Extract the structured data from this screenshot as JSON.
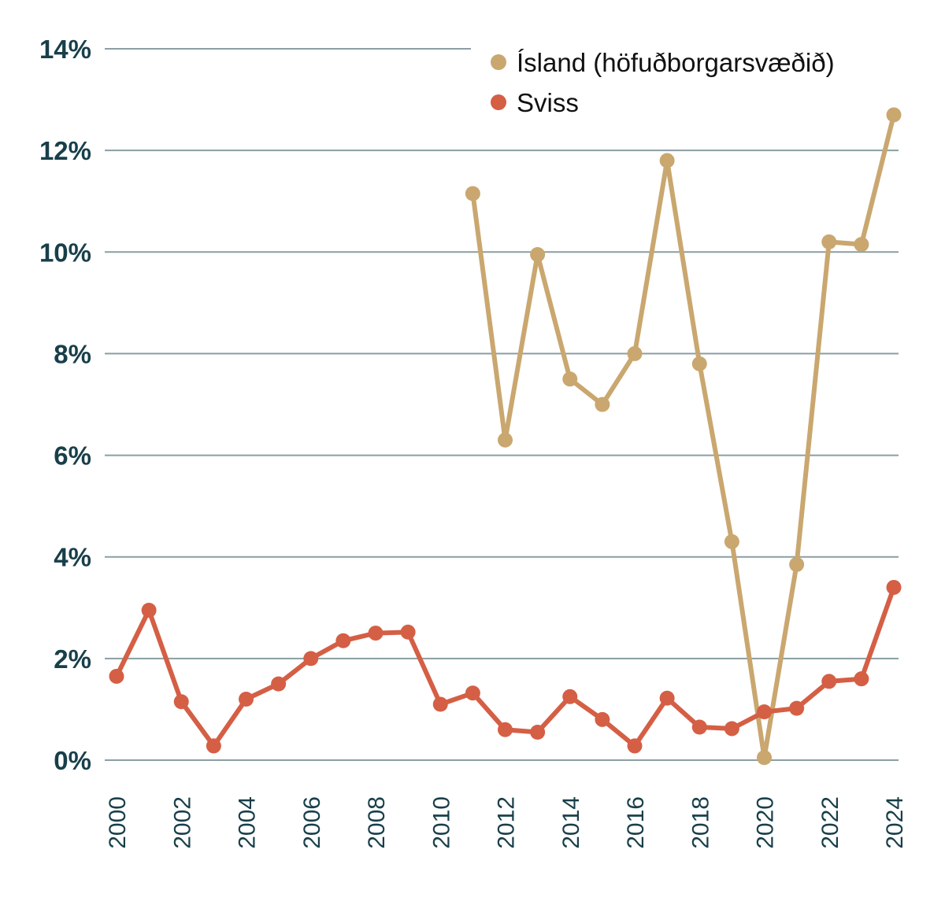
{
  "chart_data": {
    "type": "line",
    "title": "",
    "xlabel": "",
    "ylabel": "",
    "x": [
      2000,
      2001,
      2002,
      2003,
      2004,
      2005,
      2006,
      2007,
      2008,
      2009,
      2010,
      2011,
      2012,
      2013,
      2014,
      2015,
      2016,
      2017,
      2018,
      2019,
      2020,
      2021,
      2022,
      2023,
      2024
    ],
    "x_tick_labels": [
      "2000",
      "2002",
      "2004",
      "2006",
      "2008",
      "2010",
      "2012",
      "2014",
      "2016",
      "2018",
      "2020",
      "2022",
      "2024"
    ],
    "y_ticks": [
      0,
      2,
      4,
      6,
      8,
      10,
      12,
      14
    ],
    "y_tick_labels": [
      "0%",
      "2%",
      "4%",
      "6%",
      "8%",
      "10%",
      "12%",
      "14%"
    ],
    "ylim": [
      0,
      14
    ],
    "grid": true,
    "legend_position": "top-right",
    "series": [
      {
        "name": "Ísland (höfuðborgarsvæðið)",
        "color": "#c9a76f",
        "values": [
          null,
          null,
          null,
          null,
          null,
          null,
          null,
          null,
          null,
          null,
          null,
          11.15,
          6.3,
          9.95,
          7.5,
          7.0,
          8.0,
          11.8,
          7.8,
          4.3,
          0.05,
          3.85,
          10.2,
          10.15,
          12.7
        ]
      },
      {
        "name": "Sviss",
        "color": "#d45f45",
        "values": [
          1.65,
          2.95,
          1.15,
          0.28,
          1.2,
          1.5,
          2.0,
          2.35,
          2.5,
          2.52,
          1.1,
          1.32,
          0.6,
          0.55,
          1.25,
          0.8,
          0.28,
          1.22,
          0.65,
          0.62,
          0.95,
          1.02,
          1.55,
          1.6,
          3.4
        ]
      }
    ]
  }
}
